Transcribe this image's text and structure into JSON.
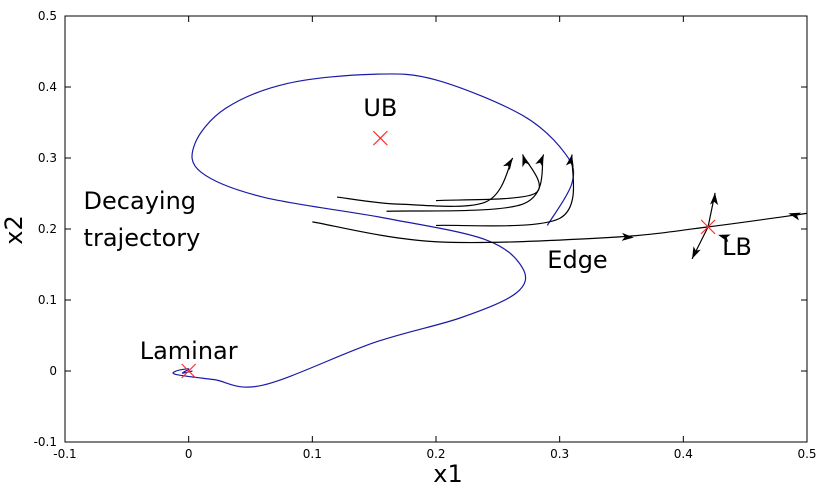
{
  "chart_data": {
    "type": "line",
    "title": "",
    "xlabel": "x1",
    "ylabel": "x2",
    "xlim": [
      -0.1,
      0.5
    ],
    "ylim": [
      -0.1,
      0.5
    ],
    "x_ticks": [
      "-0.1",
      "0",
      "0.1",
      "0.2",
      "0.3",
      "0.4",
      "0.5"
    ],
    "y_ticks": [
      "-0.1",
      "0",
      "0.1",
      "0.2",
      "0.3",
      "0.4",
      "0.5"
    ],
    "grid": false,
    "colors": {
      "decaying": "#1a1aa6",
      "edge": "#000000",
      "fixed_point": "#ff2a2a",
      "axes": "#000000"
    },
    "fixed_points": [
      {
        "label": "UB",
        "x": 0.155,
        "y": 0.328
      },
      {
        "label": "LB",
        "x": 0.42,
        "y": 0.203
      },
      {
        "label": "Laminar",
        "x": 0.0,
        "y": 0.0
      }
    ],
    "annotations": [
      {
        "text": "Decaying",
        "x": -0.085,
        "y": 0.228
      },
      {
        "text": "trajectory",
        "x": -0.085,
        "y": 0.176
      },
      {
        "text": "Edge",
        "x": 0.29,
        "y": 0.145
      }
    ],
    "series": [
      {
        "style": "decaying",
        "points": [
          [
            0.29,
            0.205
          ],
          [
            0.31,
            0.265
          ],
          [
            0.305,
            0.305
          ],
          [
            0.27,
            0.36
          ],
          [
            0.2,
            0.41
          ],
          [
            0.15,
            0.418
          ],
          [
            0.08,
            0.405
          ],
          [
            0.03,
            0.37
          ],
          [
            0.005,
            0.32
          ],
          [
            0.01,
            0.28
          ],
          [
            0.06,
            0.245
          ],
          [
            0.16,
            0.215
          ],
          [
            0.24,
            0.185
          ],
          [
            0.27,
            0.145
          ],
          [
            0.265,
            0.11
          ],
          [
            0.22,
            0.075
          ],
          [
            0.15,
            0.04
          ],
          [
            0.06,
            -0.02
          ],
          [
            0.02,
            -0.012
          ],
          [
            -0.01,
            -0.005
          ],
          [
            -0.01,
            0.0
          ],
          [
            0.0,
            0.003
          ],
          [
            -0.005,
            -0.003
          ],
          [
            0.003,
            0.0
          ]
        ]
      },
      {
        "style": "edge",
        "points": [
          [
            0.12,
            0.245
          ],
          [
            0.17,
            0.235
          ],
          [
            0.24,
            0.238
          ],
          [
            0.262,
            0.3
          ]
        ]
      },
      {
        "style": "edge",
        "points": [
          [
            0.2,
            0.24
          ],
          [
            0.28,
            0.25
          ],
          [
            0.27,
            0.305
          ]
        ]
      },
      {
        "style": "edge",
        "points": [
          [
            0.16,
            0.225
          ],
          [
            0.27,
            0.235
          ],
          [
            0.287,
            0.305
          ]
        ]
      },
      {
        "style": "edge",
        "points": [
          [
            0.2,
            0.205
          ],
          [
            0.3,
            0.215
          ],
          [
            0.31,
            0.305
          ]
        ]
      },
      {
        "style": "edge",
        "points": [
          [
            0.1,
            0.21
          ],
          [
            0.2,
            0.182
          ],
          [
            0.34,
            0.188
          ],
          [
            0.42,
            0.203
          ],
          [
            0.5,
            0.222
          ]
        ]
      }
    ]
  }
}
